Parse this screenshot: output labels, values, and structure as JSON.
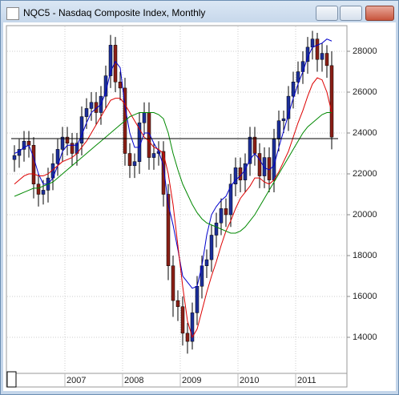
{
  "chart_data": {
    "type": "candlestick",
    "title": "NQC5 - Nasdaq Composite Index, Monthly",
    "categories": [
      null,
      null,
      null,
      null,
      null,
      null,
      null,
      null,
      null,
      null,
      null,
      "2007",
      null,
      null,
      null,
      null,
      null,
      null,
      null,
      null,
      null,
      null,
      null,
      "2008",
      null,
      null,
      null,
      null,
      null,
      null,
      null,
      null,
      null,
      null,
      null,
      "2009",
      null,
      null,
      null,
      null,
      null,
      null,
      null,
      null,
      null,
      null,
      null,
      "2010",
      null,
      null,
      null,
      null,
      null,
      null,
      null,
      null,
      null,
      null,
      null,
      "2011",
      null,
      null,
      null,
      null,
      null,
      null,
      null
    ],
    "open": [
      22700,
      22900,
      23200,
      23600,
      23400,
      21500,
      21000,
      21200,
      21800,
      22500,
      23200,
      23800,
      23500,
      23000,
      23500,
      24800,
      25200,
      25500,
      25000,
      25800,
      26800,
      28300,
      26500,
      26200,
      23000,
      22400,
      22600,
      24500,
      25000,
      22800,
      23000,
      23100,
      21000,
      17500,
      15800,
      15500,
      14200,
      13800,
      15200,
      16500,
      17500,
      17800,
      19000,
      19600,
      20300,
      20000,
      21500,
      22300,
      21700,
      22500,
      23800,
      23000,
      21900,
      22800,
      21700,
      23700,
      24600,
      24700,
      25800,
      26500,
      27000,
      27500,
      28200,
      28600,
      27600,
      27900,
      27300
    ],
    "high": [
      23400,
      23700,
      24100,
      24100,
      23800,
      22000,
      21700,
      22300,
      23000,
      23700,
      24300,
      24300,
      24000,
      24000,
      25300,
      25700,
      26000,
      26000,
      26300,
      27300,
      28800,
      28700,
      27000,
      26700,
      23500,
      23000,
      25000,
      25500,
      25500,
      23500,
      23600,
      23600,
      21500,
      18000,
      16300,
      16000,
      14700,
      15700,
      17000,
      18000,
      18300,
      19500,
      20100,
      20800,
      20800,
      22000,
      22800,
      22800,
      23000,
      24300,
      24300,
      23500,
      23300,
      23300,
      24200,
      25100,
      25100,
      26300,
      27000,
      27500,
      28000,
      28700,
      29000,
      28900,
      28400,
      28300,
      28000
    ],
    "low": [
      22100,
      22300,
      22600,
      22800,
      20800,
      20400,
      20500,
      20600,
      21200,
      21900,
      22600,
      22900,
      22400,
      22400,
      22900,
      24200,
      24600,
      24400,
      24400,
      25200,
      26200,
      26000,
      25600,
      22400,
      21800,
      21800,
      22000,
      23900,
      22200,
      22200,
      22400,
      20400,
      16800,
      15000,
      14800,
      13600,
      13200,
      13400,
      14600,
      15900,
      16900,
      17200,
      18400,
      19000,
      19400,
      19400,
      20900,
      21100,
      21100,
      21900,
      22400,
      21300,
      21300,
      21100,
      21100,
      23100,
      24000,
      24100,
      25200,
      25900,
      26400,
      26900,
      27600,
      27000,
      27000,
      26700,
      23200
    ],
    "close": [
      22900,
      23200,
      23600,
      23400,
      21500,
      21000,
      21200,
      21800,
      22500,
      23200,
      23800,
      23500,
      23000,
      23500,
      24800,
      25200,
      25500,
      25000,
      25800,
      26800,
      28300,
      26500,
      26200,
      23000,
      22400,
      22600,
      24500,
      25000,
      22800,
      23000,
      23100,
      21000,
      17500,
      15800,
      15500,
      14200,
      13800,
      15200,
      16500,
      17500,
      17800,
      19000,
      19600,
      20300,
      20000,
      21500,
      22300,
      21700,
      22500,
      23800,
      23000,
      21900,
      22800,
      21700,
      23700,
      24600,
      24700,
      25800,
      26500,
      27000,
      27500,
      28200,
      28600,
      27600,
      27900,
      27300,
      23800
    ],
    "up_color": "#1c2f9a",
    "down_color": "#8a1f16",
    "lines": [
      {
        "color": "#0000cc",
        "values": [
          23000,
          23100,
          23300,
          23400,
          22800,
          22000,
          21500,
          21500,
          21800,
          22400,
          23100,
          23400,
          23400,
          23400,
          23900,
          24500,
          25000,
          25200,
          25400,
          26000,
          27000,
          27500,
          27200,
          25300,
          24000,
          23300,
          23300,
          24000,
          24000,
          23500,
          23100,
          22400,
          20500,
          19500,
          18300,
          17000,
          16700,
          16400,
          16500,
          17500,
          19000,
          20000,
          20400,
          20700,
          20900,
          21400,
          21700,
          21900,
          22200,
          22700,
          23000,
          22700,
          22300,
          22200,
          22400,
          23300,
          24100,
          24900,
          25700,
          26400,
          27000,
          27700,
          28200,
          28300,
          28400,
          28600,
          28500
        ]
      },
      {
        "color": "#dd0000",
        "values": [
          21500,
          21700,
          21900,
          22000,
          22000,
          21900,
          21900,
          22000,
          22200,
          22400,
          22600,
          22700,
          22800,
          23000,
          23300,
          23600,
          24000,
          24400,
          24800,
          25200,
          25600,
          25700,
          25700,
          25400,
          25000,
          24600,
          24200,
          23800,
          23600,
          23300,
          23200,
          23000,
          22000,
          20500,
          18500,
          16500,
          14800,
          14000,
          14400,
          15300,
          16200,
          17000,
          17700,
          18500,
          19200,
          19700,
          20300,
          20800,
          21100,
          21400,
          21800,
          21800,
          21600,
          21500,
          21700,
          22100,
          22600,
          23100,
          23800,
          24500,
          25100,
          25800,
          26400,
          26700,
          26600,
          26000,
          25000
        ]
      },
      {
        "color": "#008800",
        "values": [
          20900,
          21000,
          21100,
          21200,
          21300,
          21300,
          21400,
          21500,
          21600,
          21800,
          22000,
          22200,
          22400,
          22600,
          22800,
          23000,
          23200,
          23400,
          23600,
          23800,
          24000,
          24200,
          24400,
          24600,
          24800,
          24900,
          25000,
          25000,
          25000,
          25000,
          24900,
          24700,
          24000,
          23000,
          22200,
          21500,
          21000,
          20500,
          20100,
          19800,
          19600,
          19500,
          19400,
          19300,
          19200,
          19100,
          19100,
          19200,
          19400,
          19700,
          20000,
          20400,
          20800,
          21200,
          21600,
          22000,
          22400,
          22800,
          23200,
          23600,
          24000,
          24300,
          24500,
          24700,
          24900,
          25000,
          25000
        ]
      }
    ],
    "reference_line": 23725,
    "ylim": [
      12275,
      29255
    ],
    "yticks": [
      14000,
      16000,
      18000,
      20000,
      22000,
      24000,
      26000,
      28000
    ],
    "grid": true
  }
}
